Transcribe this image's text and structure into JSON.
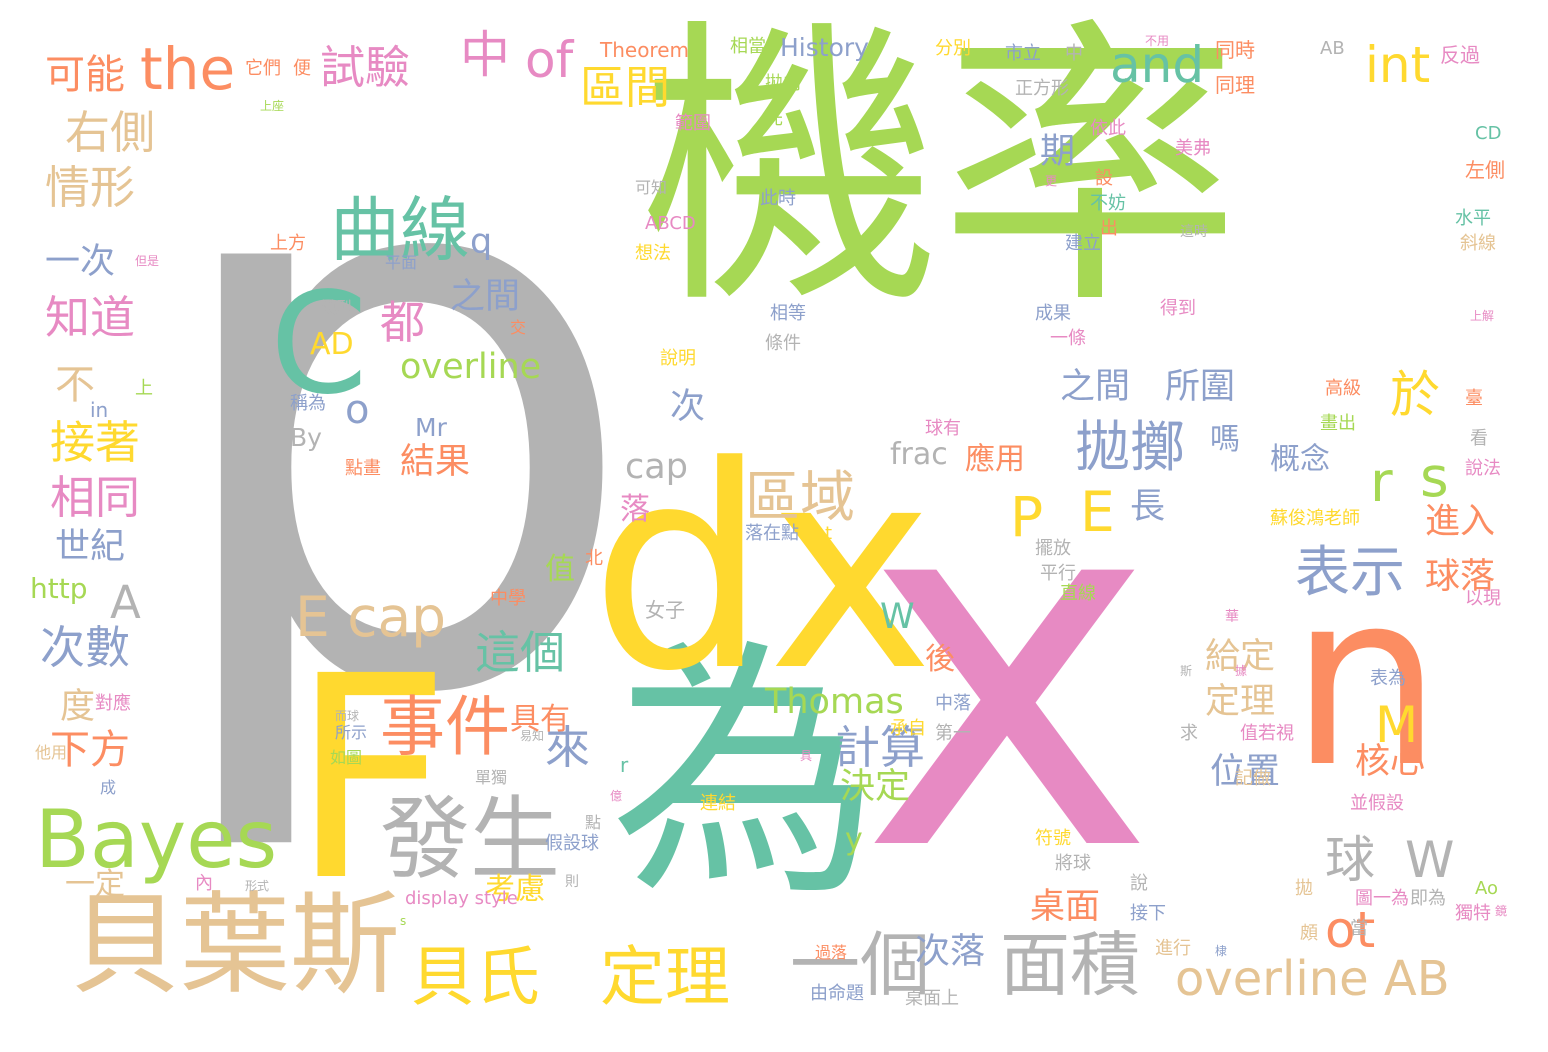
{
  "palette": {
    "gray": "#b3b3b3",
    "green": "#a6d854",
    "pink": "#e78ac3",
    "yellow": "#ffd92f",
    "teal": "#66c2a5",
    "orange": "#fc8d62",
    "tan": "#e5c494",
    "blue": "#8da0cb"
  },
  "words": [
    {
      "text": "p",
      "color": "gray"
    },
    {
      "text": "機率",
      "color": "green"
    },
    {
      "text": "x",
      "color": "pink"
    },
    {
      "text": "為",
      "color": "teal"
    },
    {
      "text": "dx",
      "color": "yellow"
    },
    {
      "text": "F",
      "color": "yellow"
    },
    {
      "text": "n",
      "color": "orange"
    },
    {
      "text": "貝葉斯",
      "color": "tan"
    },
    {
      "text": "C",
      "color": "teal"
    },
    {
      "text": "Bayes",
      "color": "green"
    },
    {
      "text": "發生",
      "color": "gray"
    },
    {
      "text": "曲線",
      "color": "teal"
    },
    {
      "text": "the",
      "color": "orange"
    },
    {
      "text": "事件",
      "color": "orange"
    },
    {
      "text": "面積",
      "color": "gray"
    },
    {
      "text": "貝氏",
      "color": "yellow"
    },
    {
      "text": "定理",
      "color": "yellow"
    },
    {
      "text": "一個",
      "color": "gray"
    },
    {
      "text": "overline AB",
      "color": "tan"
    },
    {
      "text": "E cap",
      "color": "tan"
    },
    {
      "text": "P",
      "color": "yellow"
    },
    {
      "text": "E",
      "color": "yellow"
    },
    {
      "text": "區域",
      "color": "tan"
    },
    {
      "text": "拋擲",
      "color": "blue"
    },
    {
      "text": "表示",
      "color": "blue"
    },
    {
      "text": "中",
      "color": "pink"
    },
    {
      "text": "of",
      "color": "pink"
    },
    {
      "text": "and",
      "color": "teal"
    },
    {
      "text": "int",
      "color": "yellow"
    },
    {
      "text": "試驗",
      "color": "pink"
    },
    {
      "text": "區間",
      "color": "yellow"
    },
    {
      "text": "右側",
      "color": "tan"
    },
    {
      "text": "情形",
      "color": "tan"
    },
    {
      "text": "可能",
      "color": "orange"
    },
    {
      "text": "知道",
      "color": "pink"
    },
    {
      "text": "接著",
      "color": "yellow"
    },
    {
      "text": "相同",
      "color": "pink"
    },
    {
      "text": "次數",
      "color": "blue"
    },
    {
      "text": "r",
      "color": "green"
    },
    {
      "text": "s",
      "color": "green"
    },
    {
      "text": "於",
      "color": "yellow"
    },
    {
      "text": "ot",
      "color": "orange"
    },
    {
      "text": "M",
      "color": "yellow"
    },
    {
      "text": "球",
      "color": "gray"
    },
    {
      "text": "W",
      "color": "gray"
    },
    {
      "text": "來",
      "color": "blue"
    },
    {
      "text": "這個",
      "color": "teal"
    },
    {
      "text": "計算",
      "color": "blue"
    },
    {
      "text": "overline",
      "color": "green"
    },
    {
      "text": "都",
      "color": "pink"
    },
    {
      "text": "之間",
      "color": "blue"
    },
    {
      "text": "之間",
      "color": "blue"
    },
    {
      "text": "所圍",
      "color": "blue"
    },
    {
      "text": "q",
      "color": "blue"
    },
    {
      "text": "AD",
      "color": "yellow"
    },
    {
      "text": "o",
      "color": "blue"
    },
    {
      "text": "A",
      "color": "gray"
    },
    {
      "text": "不",
      "color": "tan"
    },
    {
      "text": "下方",
      "color": "orange"
    },
    {
      "text": "世紀",
      "color": "blue"
    },
    {
      "text": "一次",
      "color": "blue"
    },
    {
      "text": "度",
      "color": "tan"
    },
    {
      "text": "一定",
      "color": "tan"
    },
    {
      "text": "http",
      "color": "green"
    },
    {
      "text": "in",
      "color": "blue"
    },
    {
      "text": "結果",
      "color": "orange"
    },
    {
      "text": "Mr",
      "color": "blue"
    },
    {
      "text": "By",
      "color": "gray"
    },
    {
      "text": "cap",
      "color": "gray"
    },
    {
      "text": "frac",
      "color": "gray"
    },
    {
      "text": "應用",
      "color": "orange"
    },
    {
      "text": "期",
      "color": "blue"
    },
    {
      "text": "次",
      "color": "blue"
    },
    {
      "text": "嗎",
      "color": "blue"
    },
    {
      "text": "概念",
      "color": "blue"
    },
    {
      "text": "長",
      "color": "blue"
    },
    {
      "text": "進入",
      "color": "orange"
    },
    {
      "text": "球落",
      "color": "orange"
    },
    {
      "text": "給定",
      "color": "tan"
    },
    {
      "text": "定理",
      "color": "tan"
    },
    {
      "text": "位置",
      "color": "blue"
    },
    {
      "text": "核心",
      "color": "orange"
    },
    {
      "text": "決定",
      "color": "green"
    },
    {
      "text": "桌面",
      "color": "orange"
    },
    {
      "text": "次落",
      "color": "blue"
    },
    {
      "text": "考慮",
      "color": "yellow"
    },
    {
      "text": "值",
      "color": "green"
    },
    {
      "text": "落",
      "color": "pink"
    },
    {
      "text": "具有",
      "color": "orange"
    },
    {
      "text": "後",
      "color": "orange"
    },
    {
      "text": "Thomas",
      "color": "green"
    },
    {
      "text": "W",
      "color": "teal"
    },
    {
      "text": "y",
      "color": "green"
    },
    {
      "text": "r",
      "color": "teal"
    },
    {
      "text": "Theorem",
      "color": "orange"
    },
    {
      "text": "History",
      "color": "blue"
    },
    {
      "text": "相當",
      "color": "green"
    },
    {
      "text": "它們",
      "color": "orange"
    },
    {
      "text": "便",
      "color": "orange"
    },
    {
      "text": "分別",
      "color": "yellow"
    },
    {
      "text": "市立",
      "color": "blue"
    },
    {
      "text": "中",
      "color": "gray"
    },
    {
      "text": "同時",
      "color": "orange"
    },
    {
      "text": "同理",
      "color": "orange"
    },
    {
      "text": "反過",
      "color": "pink"
    },
    {
      "text": "AB",
      "color": "gray"
    },
    {
      "text": "正方形",
      "color": "gray"
    },
    {
      "text": "CD",
      "color": "teal"
    },
    {
      "text": "左側",
      "color": "orange"
    },
    {
      "text": "水平",
      "color": "teal"
    },
    {
      "text": "斜線",
      "color": "tan"
    },
    {
      "text": "美弗",
      "color": "pink"
    },
    {
      "text": "高級",
      "color": "orange"
    },
    {
      "text": "畫出",
      "color": "green"
    },
    {
      "text": "臺",
      "color": "orange"
    },
    {
      "text": "看",
      "color": "gray"
    },
    {
      "text": "說法",
      "color": "pink"
    },
    {
      "text": "以現",
      "color": "pink"
    },
    {
      "text": "蘇俊鴻老師",
      "color": "yellow"
    },
    {
      "text": "表為",
      "color": "blue"
    },
    {
      "text": "並假設",
      "color": "pink"
    },
    {
      "text": "記做",
      "color": "tan"
    },
    {
      "text": "符號",
      "color": "yellow"
    },
    {
      "text": "將球",
      "color": "gray"
    },
    {
      "text": "說",
      "color": "gray"
    },
    {
      "text": "接下",
      "color": "blue"
    },
    {
      "text": "進行",
      "color": "tan"
    },
    {
      "text": "獨特",
      "color": "pink"
    },
    {
      "text": "即為",
      "color": "gray"
    },
    {
      "text": "圖一為",
      "color": "pink"
    },
    {
      "text": "頗",
      "color": "tan"
    },
    {
      "text": "當",
      "color": "gray"
    },
    {
      "text": "拋",
      "color": "tan"
    },
    {
      "text": "Ao",
      "color": "green"
    },
    {
      "text": "求",
      "color": "gray"
    },
    {
      "text": "值若視",
      "color": "pink"
    },
    {
      "text": "拋向",
      "color": "green"
    },
    {
      "text": "先",
      "color": "green"
    },
    {
      "text": "範圍",
      "color": "pink"
    },
    {
      "text": "可知",
      "color": "gray"
    },
    {
      "text": "ABCD",
      "color": "pink"
    },
    {
      "text": "想法",
      "color": "yellow"
    },
    {
      "text": "此時",
      "color": "blue"
    },
    {
      "text": "上方",
      "color": "orange"
    },
    {
      "text": "平面",
      "color": "blue"
    },
    {
      "text": "模型",
      "color": "gray"
    },
    {
      "text": "交",
      "color": "orange"
    },
    {
      "text": "相等",
      "color": "blue"
    },
    {
      "text": "條件",
      "color": "gray"
    },
    {
      "text": "說明",
      "color": "yellow"
    },
    {
      "text": "上",
      "color": "green"
    },
    {
      "text": "稱為",
      "color": "blue"
    },
    {
      "text": "點畫",
      "color": "orange"
    },
    {
      "text": "球有",
      "color": "pink"
    },
    {
      "text": "落在點",
      "color": "blue"
    },
    {
      "text": "t",
      "color": "yellow"
    },
    {
      "text": "北",
      "color": "orange"
    },
    {
      "text": "女子",
      "color": "gray"
    },
    {
      "text": "中學",
      "color": "orange"
    },
    {
      "text": "承自",
      "color": "yellow"
    },
    {
      "text": "對應",
      "color": "pink"
    },
    {
      "text": "所示",
      "color": "blue"
    },
    {
      "text": "如圖",
      "color": "green"
    },
    {
      "text": "單獨",
      "color": "gray"
    },
    {
      "text": "成",
      "color": "blue"
    },
    {
      "text": "他用",
      "color": "tan"
    },
    {
      "text": "內",
      "color": "pink"
    },
    {
      "text": "點",
      "color": "gray"
    },
    {
      "text": "假設球",
      "color": "blue"
    },
    {
      "text": "display style",
      "color": "pink"
    },
    {
      "text": "s",
      "color": "green"
    },
    {
      "text": "則",
      "color": "gray"
    },
    {
      "text": "過落",
      "color": "orange"
    },
    {
      "text": "由命題",
      "color": "blue"
    },
    {
      "text": "桌面上",
      "color": "gray"
    },
    {
      "text": "連結",
      "color": "yellow"
    },
    {
      "text": "擺放",
      "color": "gray"
    },
    {
      "text": "平行",
      "color": "gray"
    },
    {
      "text": "直線",
      "color": "green"
    },
    {
      "text": "中落",
      "color": "blue"
    },
    {
      "text": "第一",
      "color": "gray"
    },
    {
      "text": "建立",
      "color": "blue"
    },
    {
      "text": "不妨",
      "color": "teal"
    },
    {
      "text": "出",
      "color": "orange"
    },
    {
      "text": "設",
      "color": "orange"
    },
    {
      "text": "依此",
      "color": "pink"
    },
    {
      "text": "這時",
      "color": "gray"
    },
    {
      "text": "成果",
      "color": "blue"
    },
    {
      "text": "一條",
      "color": "pink"
    },
    {
      "text": "得到",
      "color": "pink"
    },
    {
      "text": "不用",
      "color": "pink"
    },
    {
      "text": "上座",
      "color": "green"
    },
    {
      "text": "上解",
      "color": "pink"
    },
    {
      "text": "而球",
      "color": "gray"
    },
    {
      "text": "易知",
      "color": "gray"
    },
    {
      "text": "形式",
      "color": "gray"
    },
    {
      "text": "棣",
      "color": "blue"
    },
    {
      "text": "據",
      "color": "pink"
    },
    {
      "text": "華",
      "color": "pink"
    },
    {
      "text": "斯",
      "color": "gray"
    },
    {
      "text": "具",
      "color": "pink"
    },
    {
      "text": "鏡",
      "color": "pink"
    },
    {
      "text": "億",
      "color": "pink"
    },
    {
      "text": "但是",
      "color": "pink"
    },
    {
      "text": "更",
      "color": "pink"
    }
  ]
}
